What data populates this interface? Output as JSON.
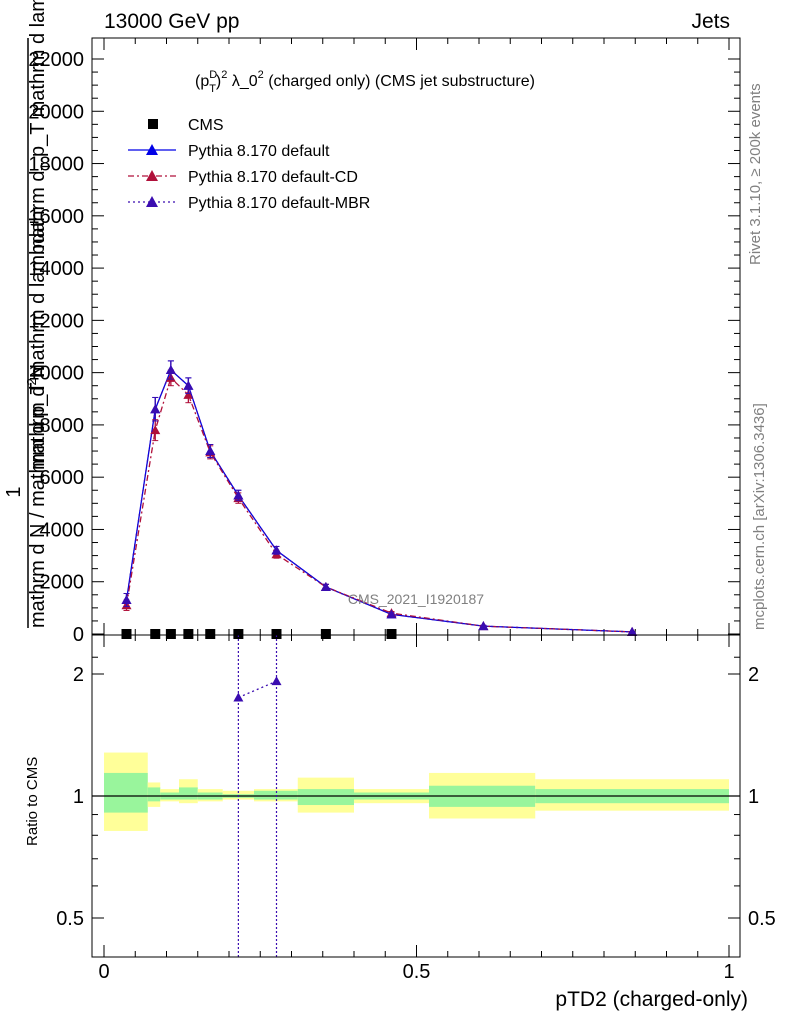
{
  "header": {
    "left": "13000 GeV pp",
    "right": "Jets"
  },
  "side_labels": {
    "rivet": "Rivet 3.1.10, ≥ 200k events",
    "mcplots": "mcplots.cern.ch [arXiv:1306.3436]"
  },
  "watermark": "CMS_2021_I1920187",
  "colors": {
    "cms": "#000000",
    "default": "#0000e6",
    "cd": "#b0103a",
    "mbr": "#3a0cb0",
    "band_inner": "#99f59c",
    "band_outer": "#ffff99"
  },
  "chart_data": [
    {
      "type": "line",
      "title": "(p_T^D)^2 λ_0^2 (charged only) (CMS jet substructure)",
      "title_parts": {
        "a": "(p",
        "sup1": "D",
        "sub1": "T",
        "b": ")",
        "sup2": "2",
        "c": " λ_0",
        "sup3": "2",
        "d": " (charged only) (CMS jet substructure)"
      },
      "ylabel_lines": [
        "1",
        "mathrm d N / mathrm d p_T mathrm d lambda",
        "mathrm d^2 N / mathrm d p_T mathrm d lambda"
      ],
      "ylabel_line_parts": [
        [
          "mathrm d",
          "2",
          "N"
        ],
        [
          "mathrm d",
          "T",
          " p_T mathrm d lambda"
        ]
      ],
      "xlim": [
        0,
        1
      ],
      "ylim": [
        0,
        22500
      ],
      "yticks": [
        {
          "v": 0,
          "label": "0"
        },
        {
          "v": 2000,
          "label": "2000"
        },
        {
          "v": 4000,
          "label": "4000"
        },
        {
          "v": 6000,
          "label": "6000"
        },
        {
          "v": 8000,
          "label": "8000"
        },
        {
          "v": 10000,
          "label": "10000"
        },
        {
          "v": 12000,
          "label": "12000"
        },
        {
          "v": 14000,
          "label": "14000"
        },
        {
          "v": 16000,
          "label": "16000"
        },
        {
          "v": 18000,
          "label": "18000"
        },
        {
          "v": 20000,
          "label": "20000"
        },
        {
          "v": 22000,
          "label": "22000"
        }
      ],
      "legend": [
        "CMS",
        "Pythia 8.170 default",
        "Pythia 8.170 default-CD",
        "Pythia 8.170 default-MBR"
      ],
      "legend_position": "top-left",
      "series": [
        {
          "name": "CMS",
          "key": "cms",
          "marker": "square",
          "x": [
            0.036,
            0.082,
            0.107,
            0.135,
            0.17,
            0.215,
            0.276,
            0.355,
            0.46
          ],
          "y": [
            0,
            0,
            0,
            0,
            0,
            0,
            0,
            0,
            0
          ]
        },
        {
          "name": "Pythia 8.170 default",
          "key": "default",
          "marker": "triangle",
          "dash": "",
          "x": [
            0.036,
            0.082,
            0.107,
            0.135,
            0.17,
            0.215,
            0.276,
            0.355,
            0.46,
            0.607,
            0.845
          ],
          "y": [
            1300,
            8600,
            10100,
            9500,
            7000,
            5300,
            3200,
            1800,
            750,
            300,
            80
          ],
          "err": [
            250,
            450,
            350,
            300,
            250,
            200,
            150,
            100,
            60,
            30,
            15
          ]
        },
        {
          "name": "Pythia 8.170 default-CD",
          "key": "cd",
          "marker": "triangle",
          "dash": "6,3,2,3",
          "x": [
            0.036,
            0.082,
            0.107,
            0.135,
            0.17,
            0.215,
            0.276,
            0.355,
            0.46,
            0.607,
            0.845
          ],
          "y": [
            1100,
            7800,
            9800,
            9150,
            6950,
            5200,
            3050,
            1800,
            800,
            300,
            80
          ],
          "err": [
            200,
            400,
            300,
            300,
            250,
            200,
            150,
            100,
            60,
            30,
            15
          ]
        },
        {
          "name": "Pythia 8.170 default-MBR",
          "key": "mbr",
          "marker": "triangle",
          "dash": "2,3",
          "x": [
            0.036,
            0.082,
            0.107,
            0.135,
            0.17,
            0.215,
            0.276,
            0.355,
            0.46,
            0.607,
            0.845
          ],
          "y": [
            1300,
            8600,
            10100,
            9500,
            7000,
            5300,
            3200,
            1800,
            750,
            300,
            80
          ],
          "err": [
            250,
            450,
            350,
            300,
            250,
            200,
            150,
            100,
            60,
            30,
            15
          ]
        }
      ]
    },
    {
      "type": "line",
      "ylabel": "Ratio to CMS",
      "xlabel": "pTD2 (charged-only)",
      "xlim": [
        0,
        1
      ],
      "ylim": [
        0.4,
        2.4
      ],
      "log_y": true,
      "xticks": [
        {
          "v": 0,
          "label": "0"
        },
        {
          "v": 0.5,
          "label": "0.5"
        },
        {
          "v": 1,
          "label": "1"
        }
      ],
      "yticks": [
        {
          "v": 0.5,
          "label": "0.5"
        },
        {
          "v": 1,
          "label": "1"
        },
        {
          "v": 2,
          "label": "2"
        }
      ],
      "reference_line": 1,
      "bands": [
        {
          "x0": 0.0,
          "x1": 0.07,
          "inner": [
            0.91,
            1.14
          ],
          "outer": [
            0.82,
            1.28
          ]
        },
        {
          "x0": 0.07,
          "x1": 0.09,
          "inner": [
            0.97,
            1.05
          ],
          "outer": [
            0.94,
            1.08
          ]
        },
        {
          "x0": 0.09,
          "x1": 0.12,
          "inner": [
            0.98,
            1.02
          ],
          "outer": [
            0.97,
            1.04
          ]
        },
        {
          "x0": 0.12,
          "x1": 0.15,
          "inner": [
            0.98,
            1.05
          ],
          "outer": [
            0.96,
            1.1
          ]
        },
        {
          "x0": 0.15,
          "x1": 0.19,
          "inner": [
            0.98,
            1.02
          ],
          "outer": [
            0.97,
            1.04
          ]
        },
        {
          "x0": 0.19,
          "x1": 0.24,
          "inner": [
            0.99,
            1.01
          ],
          "outer": [
            0.98,
            1.03
          ]
        },
        {
          "x0": 0.24,
          "x1": 0.31,
          "inner": [
            0.98,
            1.03
          ],
          "outer": [
            0.97,
            1.04
          ]
        },
        {
          "x0": 0.31,
          "x1": 0.4,
          "inner": [
            0.95,
            1.04
          ],
          "outer": [
            0.91,
            1.11
          ]
        },
        {
          "x0": 0.4,
          "x1": 0.52,
          "inner": [
            0.98,
            1.02
          ],
          "outer": [
            0.96,
            1.04
          ]
        },
        {
          "x0": 0.52,
          "x1": 0.69,
          "inner": [
            0.94,
            1.06
          ],
          "outer": [
            0.88,
            1.14
          ]
        },
        {
          "x0": 0.69,
          "x1": 1.0,
          "inner": [
            0.96,
            1.04
          ],
          "outer": [
            0.92,
            1.1
          ]
        }
      ],
      "series": [
        {
          "name": "Pythia 8.170 default-MBR",
          "key": "mbr",
          "marker": "triangle",
          "dash": "2,3",
          "x": [
            0.215,
            0.276
          ],
          "y": [
            1.75,
            1.92
          ]
        }
      ]
    }
  ]
}
